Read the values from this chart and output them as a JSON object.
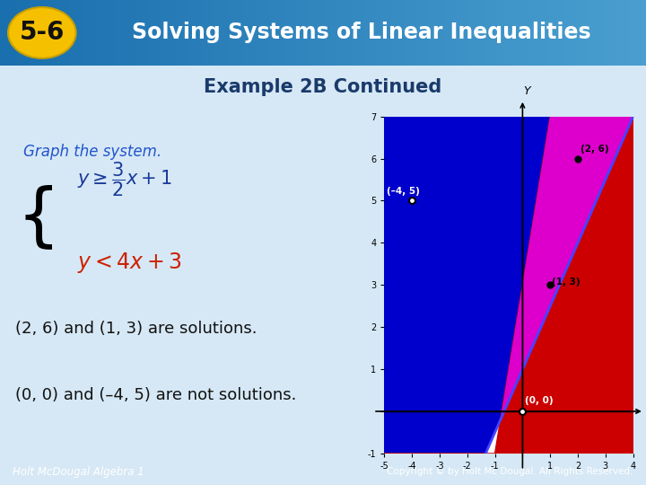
{
  "title_box_text": "5-6",
  "title_main": "Solving Systems of Linear Inequalities",
  "subtitle": "Example 2B Continued",
  "graph_text": "Graph the system.",
  "sol_text1": "(2, 6) and (1, 3) are solutions.",
  "sol_text2": "(0, 0) and (–4, 5) are not solutions.",
  "footer_left": "Holt McDougal Algebra 1",
  "footer_right": "Copyright © by Holt Mc Dougal. All Rights Reserved.",
  "bg_color": "#d6e8f5",
  "header_bg_left": "#1a6fae",
  "header_bg_right": "#4a9fd0",
  "title_oval_bg": "#f5c000",
  "header_text_color": "#ffffff",
  "subtitle_color": "#1a3a6b",
  "graph_text_color": "#2255cc",
  "eq1_color": "#1a3a9a",
  "eq2_color": "#cc2200",
  "body_text_color": "#111111",
  "footer_bg": "#2878b8",
  "footer_text_color": "#ffffff",
  "graph_xlim": [
    -5,
    4
  ],
  "graph_ylim": [
    -1,
    7
  ],
  "blue_color": "#0000cc",
  "red_color": "#cc0000",
  "magenta_color": "#dd00cc",
  "points_solution": [
    [
      2,
      6
    ],
    [
      1,
      3
    ]
  ],
  "points_not_solution": [
    [
      0,
      0
    ],
    [
      -4,
      5
    ]
  ]
}
